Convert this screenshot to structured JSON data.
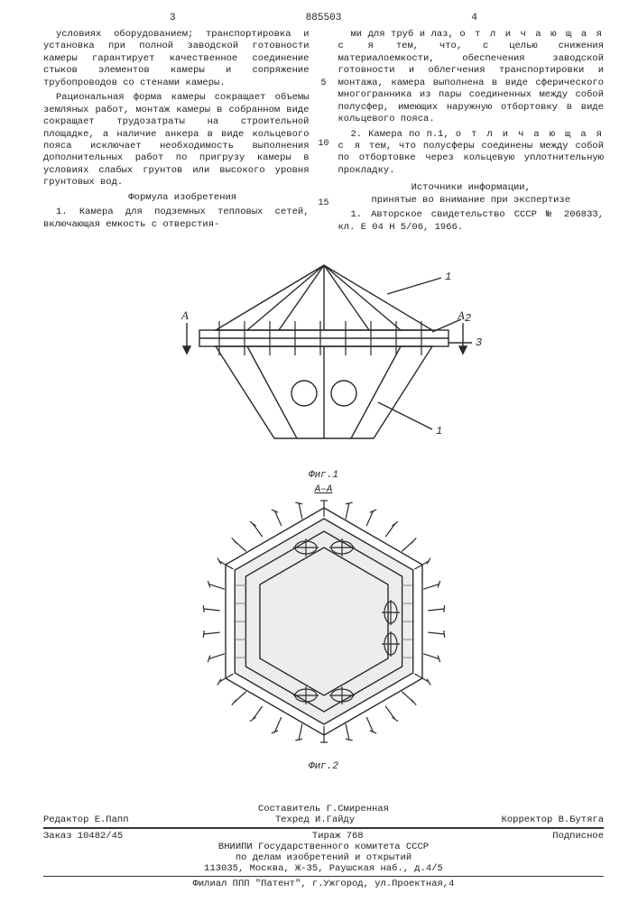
{
  "page_left_num": "3",
  "patent_number": "885503",
  "page_right_num": "4",
  "line_markers": {
    "n5": "5",
    "n10": "10",
    "n15": "15"
  },
  "left_col": {
    "p1": "условиях оборудованием; транспортировка и установка при полной заводской готовности камеры гарантирует качественное соединение стыков элементов камеры и сопряжение трубопроводов со стенами камеры.",
    "p2": "Рациональная форма камеры сокращает объемы земляных работ, монтаж камеры в собранном виде сокращает трудозатраты на строительной площадке, а наличие анкера в виде кольцевого пояса исключает необходимость выполнения дополнительных работ по пригрузу камеры в условиях слабых грунтов или высокого уровня грунтовых вод.",
    "formula_title": "Формула изобретения",
    "p3": "1. Камера для подземных тепловых сетей, включающая емкость с отверстия-"
  },
  "right_col": {
    "p1a": "ми для труб и лаз, ",
    "p1b": "о т л и ч а ю щ а я с я",
    "p1c": " тем, что, с целью снижения материалоемкости, обеспечения заводской готовности и облегчения транспортировки и монтажа, камера выполнена в виде сферического многогранника из пары соединенных между собой полусфер, имеющих наружную отбортовку в виде кольцевого пояса.",
    "p2a": "2. Камера по п.1, ",
    "p2b": "о т л и ч а ю щ а я с я",
    "p2c": " тем, что полусферы соединены между собой по отбортовке через кольцевую уплотнительную прокладку.",
    "src_title": "Источники информации,\nпринятые во внимание при экспертизе",
    "src1": "1. Авторское свидетельство СССР № 206833, кл. Е 04 Н 5/06, 1966."
  },
  "fig1": {
    "caption": "Фиг.1",
    "section_label": "А–А",
    "labels": {
      "l1": "1",
      "l2": "2",
      "l3": "3",
      "arrowA_left": "А",
      "arrowA_right": "А"
    },
    "colors": {
      "stroke": "#2a2a2a",
      "fill": "#ffffff",
      "hatch": "#6b6b6b"
    }
  },
  "fig2": {
    "caption": "Фиг.2",
    "colors": {
      "stroke": "#2a2a2a",
      "fill": "#ffffff",
      "hatch": "#6b6b6b"
    }
  },
  "footer": {
    "row1_left": "Редактор Е.Папп",
    "row1_mid_a": "Составитель Г.Смиренная",
    "row1_mid_b": "Техред И.Гайду",
    "row1_right": "Корректор В.Бутяга",
    "row2_left": "Заказ 10482/45",
    "row2_mid": "Тираж 768",
    "row2_right": "Подписное",
    "org1": "ВНИИПИ  Государственного комитета СССР",
    "org2": "по делам изобретений и открытий",
    "addr": "113035, Москва, Ж-35, Раушская наб., д.4/5",
    "filial": "Филиал ППП \"Патент\", г.Ужгород, ул.Проектная,4"
  }
}
